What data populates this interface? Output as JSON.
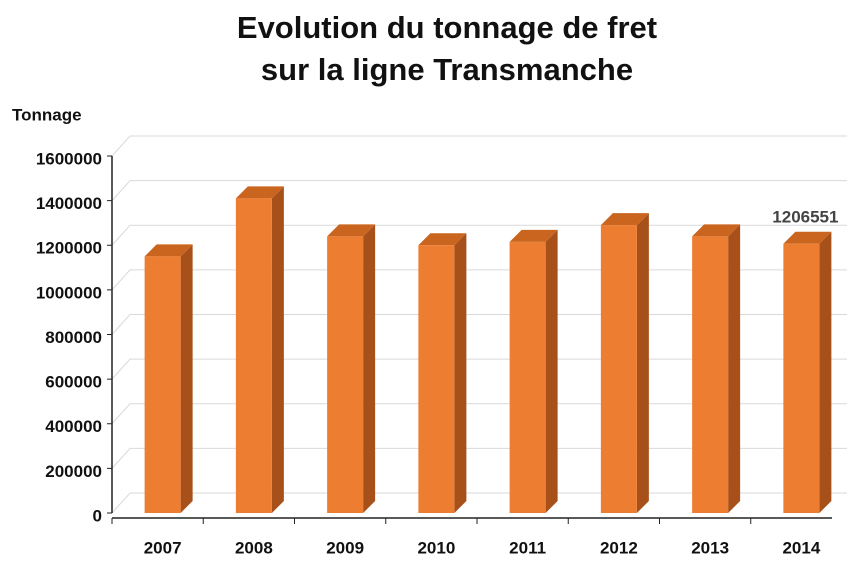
{
  "chart_data": {
    "type": "bar3d",
    "title": [
      "Evolution du tonnage de fret",
      "sur la ligne Transmanche"
    ],
    "y_label": "Tonnage",
    "categories": [
      "2007",
      "2008",
      "2009",
      "2010",
      "2011",
      "2012",
      "2013",
      "2014"
    ],
    "values": [
      1150000,
      1410000,
      1240000,
      1200000,
      1215000,
      1290000,
      1240000,
      1206551
    ],
    "color": "#ED7D31",
    "ylim": [
      0,
      1600000
    ],
    "yticks": [
      0,
      200000,
      400000,
      600000,
      800000,
      1000000,
      1200000,
      1400000,
      1600000
    ],
    "grid": true
  }
}
